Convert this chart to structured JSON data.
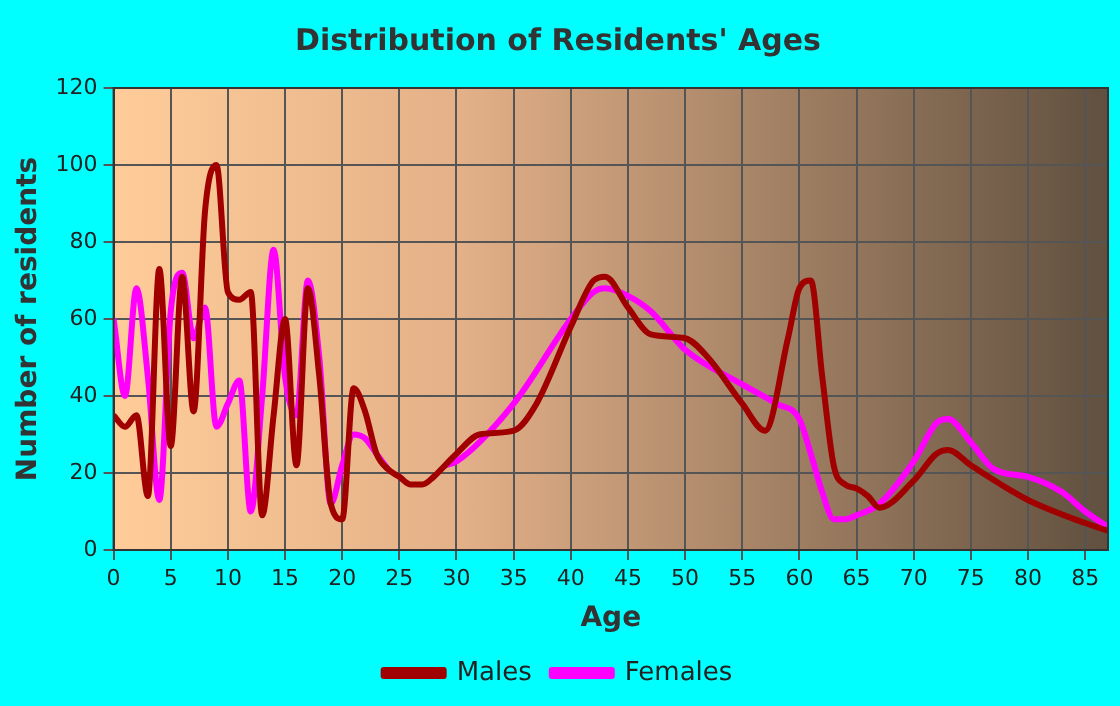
{
  "chart_data": {
    "type": "line",
    "title": "Distribution of Residents' Ages",
    "xlabel": "Age",
    "ylabel": "Number of residents",
    "xlim": [
      0,
      87
    ],
    "xticks": [
      0,
      5,
      10,
      15,
      20,
      25,
      30,
      35,
      40,
      45,
      50,
      55,
      60,
      65,
      70,
      75,
      80,
      85
    ],
    "ylim": [
      0,
      120
    ],
    "yticks": [
      0,
      20,
      40,
      60,
      80,
      100,
      120
    ],
    "grid": true,
    "legend": "bottom",
    "marker": "none",
    "line_style": "solid",
    "series": [
      {
        "name": "Males",
        "color": "#a00000",
        "x": [
          0,
          1,
          2,
          3,
          4,
          5,
          6,
          7,
          8,
          9,
          10,
          11,
          12,
          13,
          14,
          15,
          16,
          17,
          18,
          19,
          20,
          21,
          22,
          23,
          24,
          25,
          26,
          27,
          28,
          29,
          30,
          32,
          35,
          37,
          40,
          42,
          43,
          45,
          47,
          50,
          52,
          55,
          57,
          59,
          60,
          61,
          62,
          63,
          64,
          65,
          66,
          67,
          70,
          72,
          73,
          75,
          80,
          85,
          87
        ],
        "values": [
          35,
          32,
          35,
          14,
          73,
          27,
          71,
          36,
          88,
          100,
          67,
          65,
          67,
          9,
          35,
          60,
          22,
          68,
          45,
          12,
          8,
          42,
          36,
          25,
          21,
          19,
          17,
          17,
          19,
          22,
          25,
          30,
          31,
          38,
          58,
          70,
          71,
          63,
          56,
          55,
          50,
          38,
          31,
          55,
          68,
          70,
          45,
          22,
          17,
          16,
          14,
          11,
          18,
          25,
          26,
          22,
          13,
          7,
          5
        ]
      },
      {
        "name": "Females",
        "color": "#ff00ff",
        "x": [
          0,
          1,
          2,
          3,
          4,
          5,
          6,
          7,
          8,
          9,
          10,
          11,
          12,
          13,
          14,
          15,
          16,
          17,
          18,
          19,
          20,
          21,
          22,
          23,
          24,
          25,
          26,
          27,
          28,
          29,
          30,
          35,
          40,
          42,
          43,
          45,
          47,
          50,
          55,
          58,
          60,
          61,
          62,
          63,
          64,
          65,
          67,
          70,
          72,
          73,
          75,
          77,
          80,
          83,
          85,
          87
        ],
        "values": [
          60,
          40,
          68,
          45,
          13,
          62,
          72,
          55,
          63,
          32,
          38,
          44,
          10,
          40,
          78,
          45,
          35,
          70,
          50,
          12,
          22,
          30,
          29,
          25,
          21,
          null,
          null,
          null,
          null,
          22,
          23,
          38,
          60,
          67,
          68,
          66,
          62,
          52,
          43,
          38,
          34,
          25,
          15,
          8,
          8,
          9,
          12,
          23,
          33,
          34,
          28,
          21,
          19,
          15,
          10,
          6
        ]
      }
    ]
  }
}
